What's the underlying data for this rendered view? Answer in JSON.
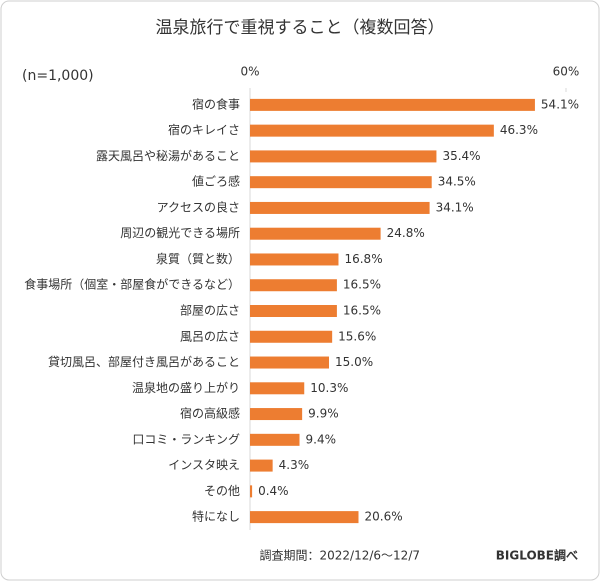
{
  "chart_data": {
    "type": "bar",
    "orientation": "horizontal",
    "title": "温泉旅行で重視すること（複数回答）",
    "subtitle": "(n=1,000)",
    "categories": [
      "宿の食事",
      "宿のキレイさ",
      "露天風呂や秘湯があること",
      "値ごろ感",
      "アクセスの良さ",
      "周辺の観光できる場所",
      "泉質（質と数）",
      "食事場所（個室・部屋食ができるなど）",
      "部屋の広さ",
      "風呂の広さ",
      "貸切風呂、部屋付き風呂があること",
      "温泉地の盛り上がり",
      "宿の高級感",
      "口コミ・ランキング",
      "インスタ映え",
      "その他",
      "特になし"
    ],
    "values": [
      54.1,
      46.3,
      35.4,
      34.5,
      34.1,
      24.8,
      16.8,
      16.5,
      16.5,
      15.6,
      15.0,
      10.3,
      9.9,
      9.4,
      4.3,
      0.4,
      20.6
    ],
    "value_labels": [
      "54.1%",
      "46.3%",
      "35.4%",
      "34.5%",
      "34.1%",
      "24.8%",
      "16.8%",
      "16.5%",
      "16.5%",
      "15.6%",
      "15.0%",
      "10.3%",
      "9.9%",
      "9.4%",
      "4.3%",
      "0.4%",
      "20.6%"
    ],
    "color": "#ed7d31",
    "xlim": [
      0,
      60
    ],
    "xticks": [
      {
        "value": 0,
        "label": "0%"
      },
      {
        "value": 60,
        "label": "60%"
      }
    ],
    "footer": [
      "調査期間：2022/12/6～12/7",
      "BIGLOBE調べ"
    ]
  }
}
